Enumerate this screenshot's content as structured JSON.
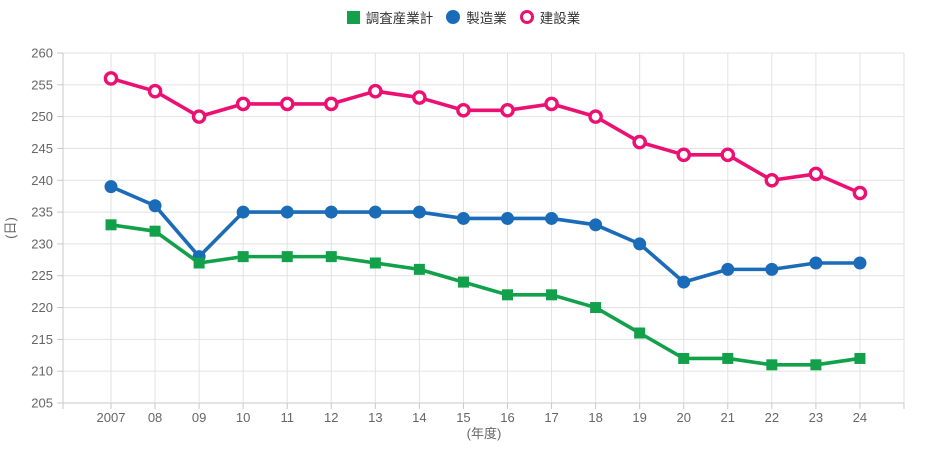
{
  "chart_data": {
    "type": "line",
    "x_categories": [
      "2007",
      "08",
      "09",
      "10",
      "11",
      "12",
      "13",
      "14",
      "15",
      "16",
      "17",
      "18",
      "19",
      "20",
      "21",
      "22",
      "23",
      "24"
    ],
    "series": [
      {
        "name": "調査産業計",
        "marker": "square",
        "color": "#12A04B",
        "values": [
          233,
          232,
          227,
          228,
          228,
          228,
          227,
          226,
          224,
          222,
          222,
          220,
          216,
          212,
          212,
          211,
          211,
          212
        ]
      },
      {
        "name": "製造業",
        "marker": "circle",
        "color": "#1A6BB8",
        "values": [
          239,
          236,
          228,
          235,
          235,
          235,
          235,
          235,
          234,
          234,
          234,
          233,
          230,
          224,
          226,
          226,
          227,
          227
        ]
      },
      {
        "name": "建設業",
        "marker": "open-circle",
        "color": "#EC1072",
        "values": [
          256,
          254,
          250,
          252,
          252,
          252,
          254,
          253,
          251,
          251,
          252,
          250,
          246,
          244,
          244,
          240,
          241,
          238
        ]
      }
    ],
    "title": "",
    "xlabel": "(年度)",
    "ylabel": "(日)",
    "ylim": [
      205,
      260
    ],
    "y_step": 5,
    "grid": true,
    "legend_position": "top-center"
  },
  "style_colors": {
    "grid_line": "#e2e2e2",
    "axis_border": "#c9c9c9",
    "tick_text": "#666666",
    "legend_text": "#333333",
    "background": "#ffffff"
  }
}
